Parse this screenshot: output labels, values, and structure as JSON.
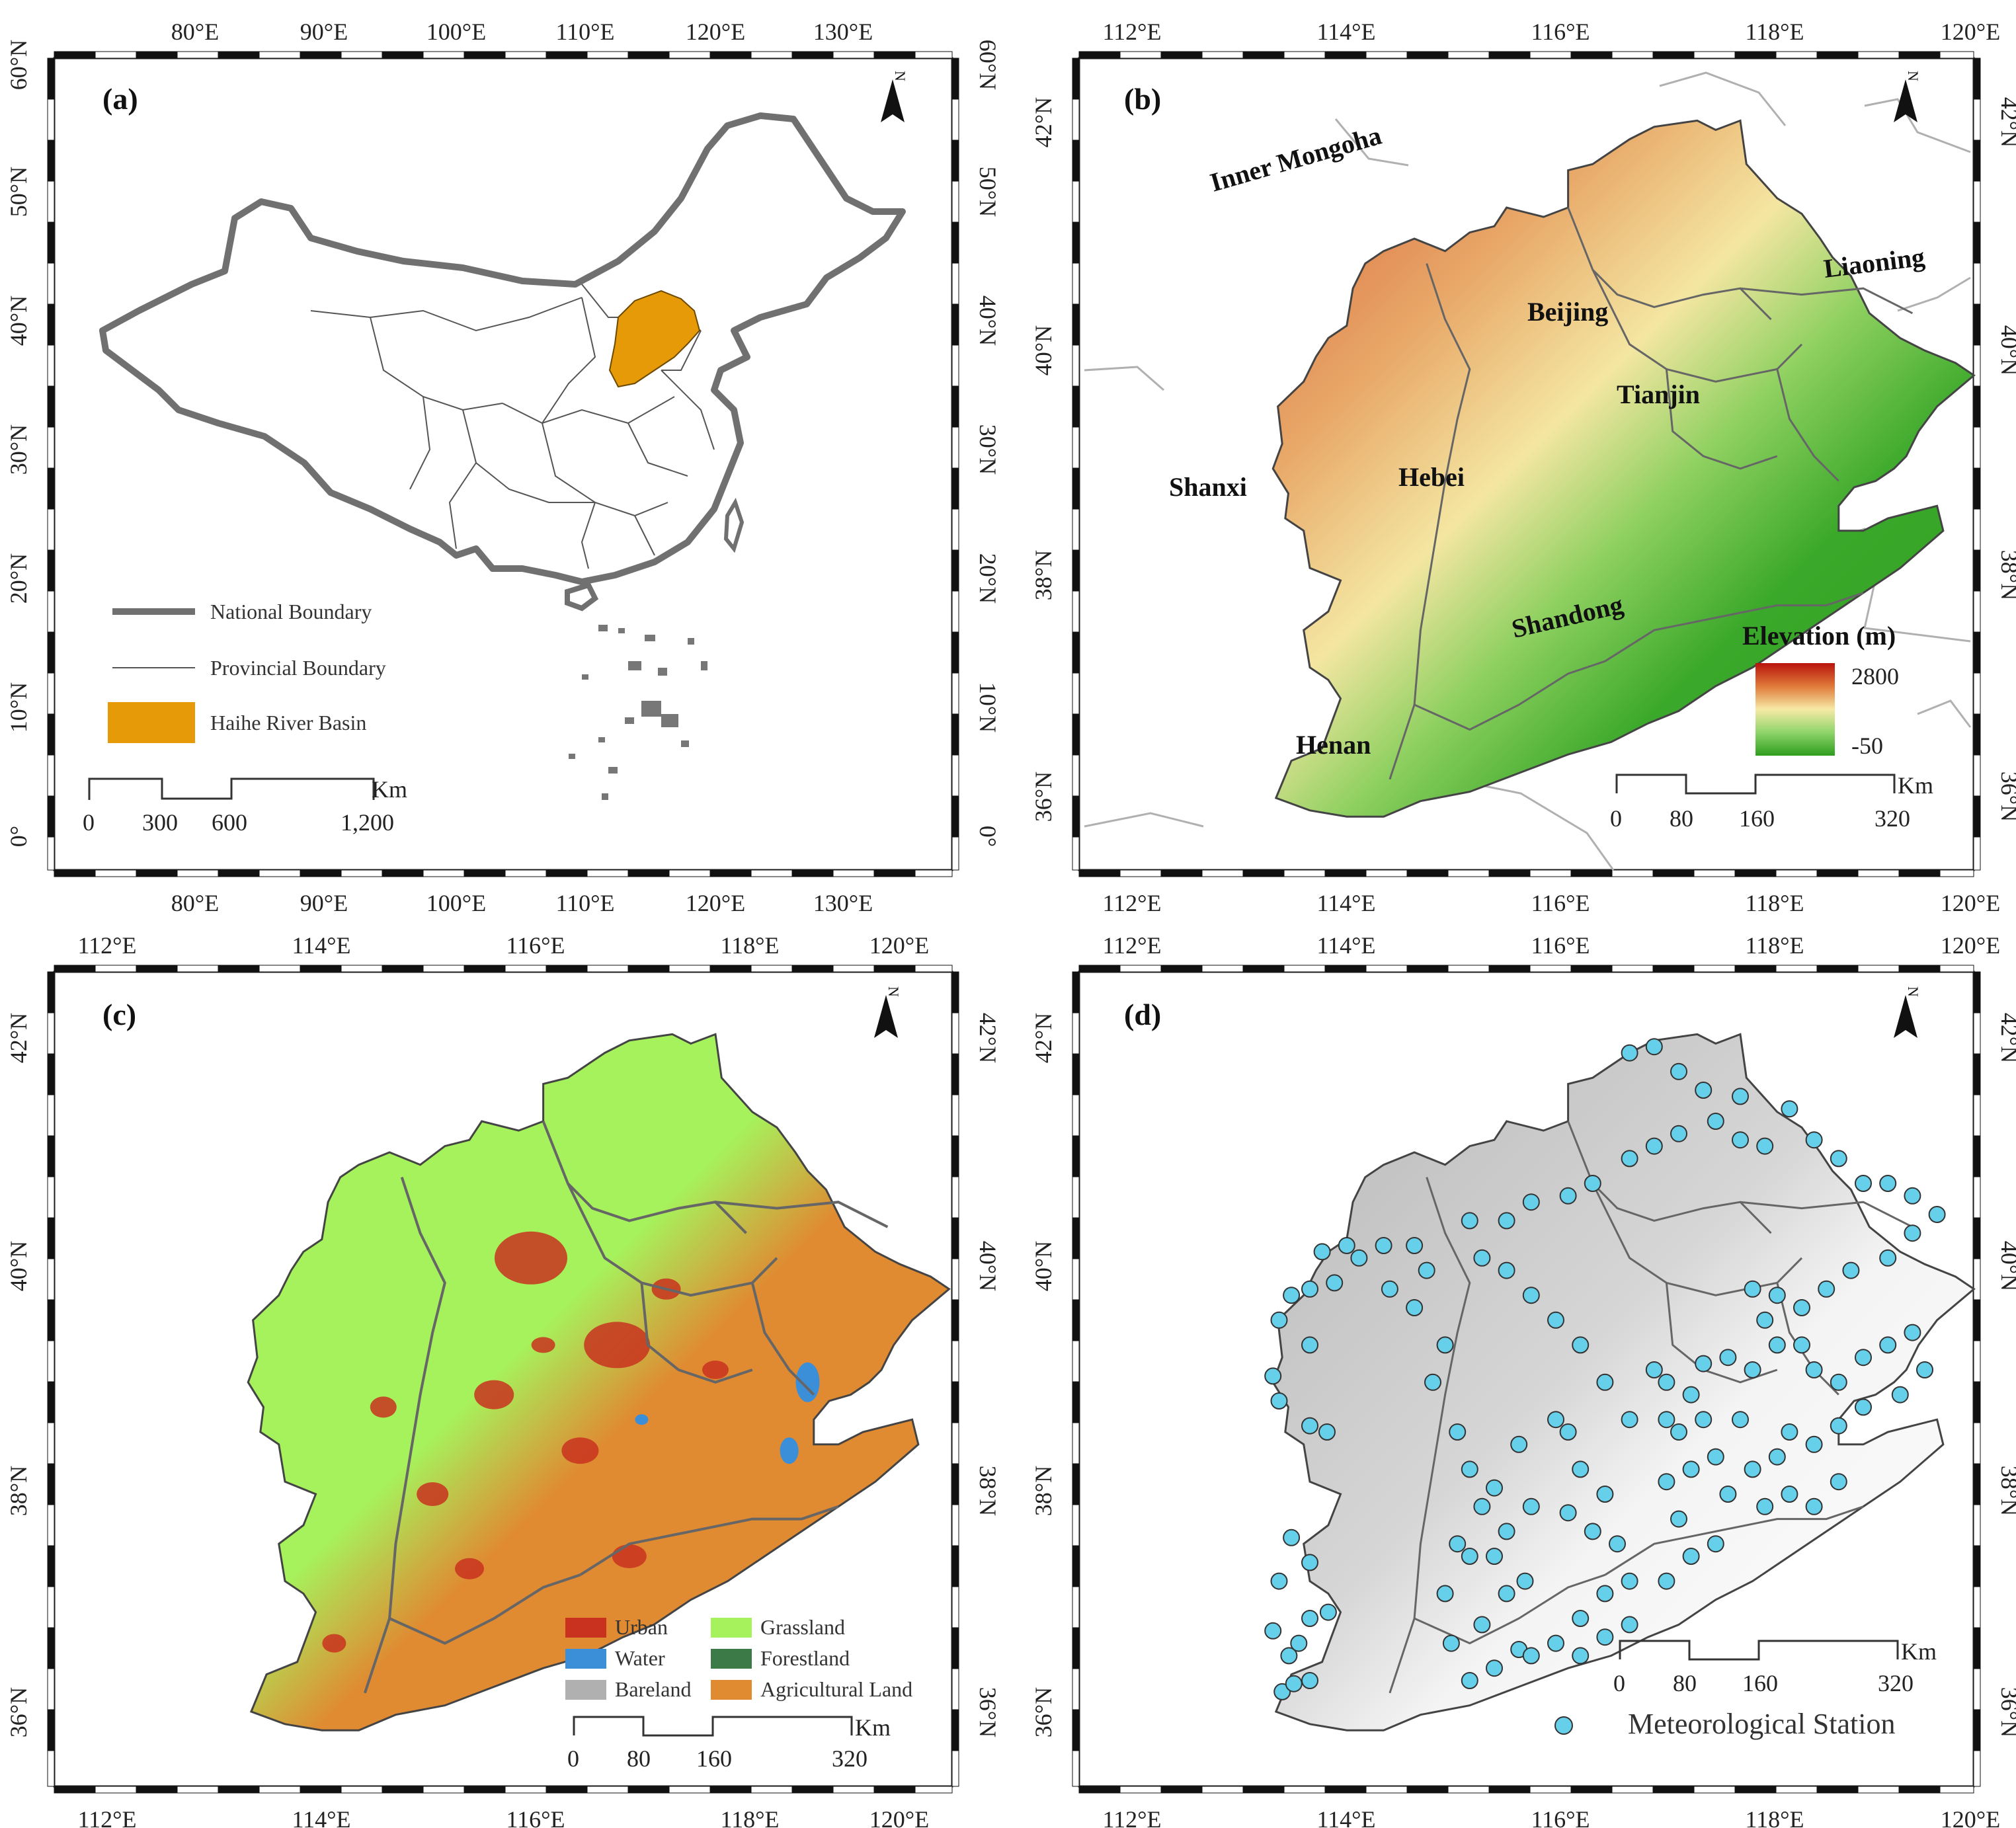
{
  "panels": [
    {
      "id": "a",
      "label": "(a)",
      "top_ticks": [
        "80°E",
        "90°E",
        "100°E",
        "110°E",
        "120°E",
        "130°E"
      ],
      "side_ticks": [
        "60°N",
        "50°N",
        "40°N",
        "30°N",
        "20°N",
        "10°N",
        "0°"
      ],
      "north": "N",
      "legend": [
        {
          "label": "National Boundary",
          "type": "thick-line"
        },
        {
          "label": "Provincial Boundary",
          "type": "thin-line"
        },
        {
          "label": "Haihe River Basin",
          "type": "fill",
          "color": "#e69a08"
        }
      ],
      "scale": {
        "unit": "Km",
        "labels": [
          "0",
          "300",
          "600",
          "1,200"
        ]
      }
    },
    {
      "id": "b",
      "label": "(b)",
      "top_ticks": [
        "112°E",
        "114°E",
        "116°E",
        "118°E",
        "120°E"
      ],
      "side_ticks": [
        "42°N",
        "40°N",
        "38°N",
        "36°N"
      ],
      "north": "N",
      "regions": [
        {
          "name": "Inner Mongoha"
        },
        {
          "name": "Liaoning"
        },
        {
          "name": "Beijing"
        },
        {
          "name": "Tianjin"
        },
        {
          "name": "Hebei"
        },
        {
          "name": "Shanxi"
        },
        {
          "name": "Shandong"
        },
        {
          "name": "Henan"
        }
      ],
      "elevation_legend": {
        "title": "Elevation (m)",
        "max": "2800",
        "min": "-50"
      },
      "scale": {
        "unit": "Km",
        "labels": [
          "0",
          "80",
          "160",
          "320"
        ]
      }
    },
    {
      "id": "c",
      "label": "(c)",
      "top_ticks": [
        "112°E",
        "114°E",
        "116°E",
        "118°E",
        "120°E"
      ],
      "side_ticks": [
        "42°N",
        "40°N",
        "38°N",
        "36°N"
      ],
      "north": "N",
      "landuse_legend": [
        {
          "label": "Urban",
          "color": "#c8321e"
        },
        {
          "label": "Grassland",
          "color": "#a6f25c"
        },
        {
          "label": "Water",
          "color": "#3a8fd8"
        },
        {
          "label": "Forestland",
          "color": "#3c7a48"
        },
        {
          "label": "Bareland",
          "color": "#b0b0b0"
        },
        {
          "label": "Agricultural Land",
          "color": "#e08a32"
        }
      ],
      "scale": {
        "unit": "Km",
        "labels": [
          "0",
          "80",
          "160",
          "320"
        ]
      }
    },
    {
      "id": "d",
      "label": "(d)",
      "top_ticks": [
        "112°E",
        "114°E",
        "116°E",
        "118°E",
        "120°E"
      ],
      "side_ticks": [
        "42°N",
        "40°N",
        "38°N",
        "36°N"
      ],
      "north": "N",
      "station_legend": "Meteorological Station",
      "scale": {
        "unit": "Km",
        "labels": [
          "0",
          "80",
          "160",
          "320"
        ]
      }
    }
  ],
  "colors": {
    "basin_orange": "#e69a08",
    "station_cyan": "#66d0ea",
    "plain_green": "#2e9e1e",
    "mountain_red": "#b8140c",
    "agri_orange": "#e08a32",
    "grass_green": "#a6f25c"
  }
}
